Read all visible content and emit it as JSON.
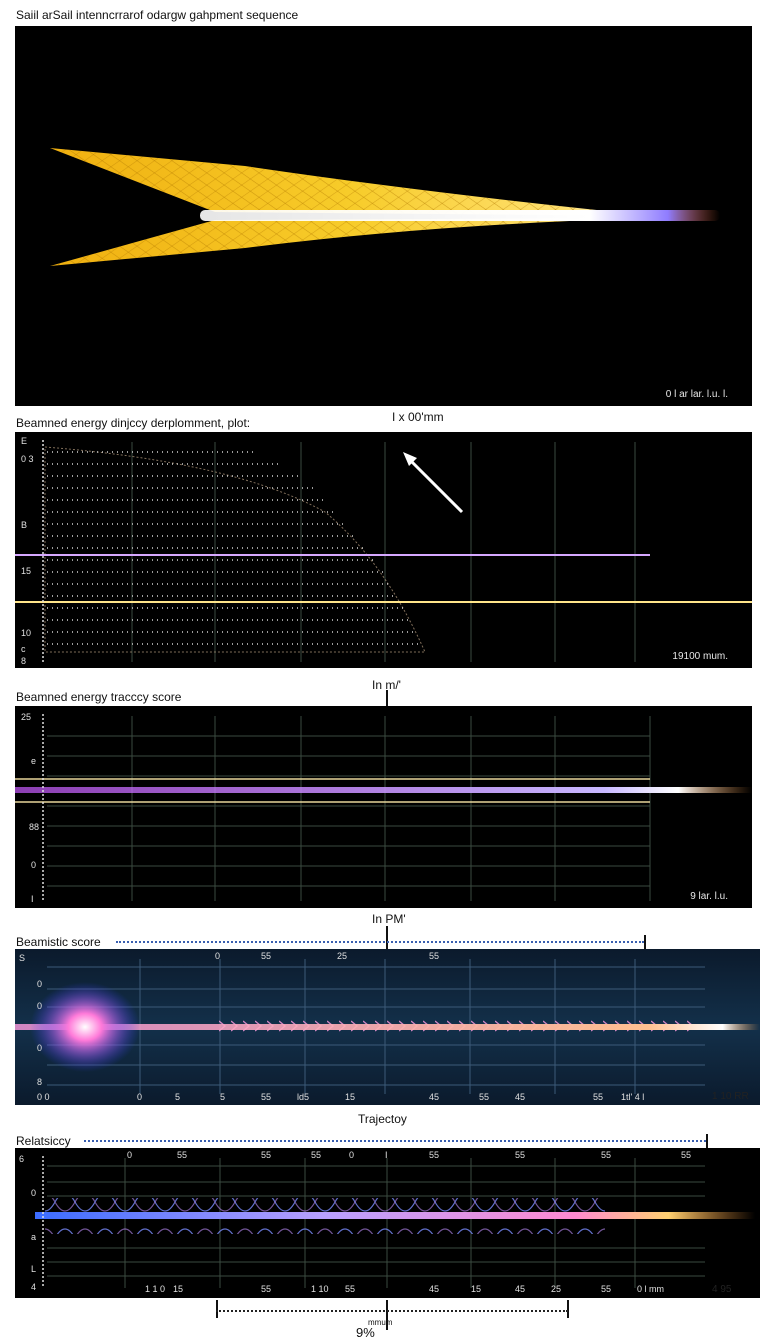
{
  "panel1": {
    "title": "Saiil arSail intenncrrarof odargw gahpment sequence",
    "scale": "0 l ar lar. l.u. l."
  },
  "panel2": {
    "title": "Beamned energy dinjccy derplomment, plot:",
    "header_marker": "I x 00'mm",
    "scale": "19100 mum.",
    "y_ticks": [
      "E",
      "0 3",
      "B",
      "15",
      "10",
      "c",
      "8"
    ]
  },
  "panel3": {
    "title": "Beamned energy tracccy score",
    "header_marker": "In m/'",
    "scale": "9 lar. l.u.",
    "y_ticks": [
      "25",
      "e",
      "88",
      "0",
      "I"
    ]
  },
  "panel4": {
    "title": "Beamistic score",
    "header_marker": "In PM'",
    "scale": "1 10 RR",
    "top_ticks": [
      "0",
      "55",
      "25",
      "55"
    ],
    "y_ticks": [
      "S",
      "0",
      "0",
      "0",
      "8"
    ],
    "bottom_ticks": [
      "0 0",
      "0",
      "5",
      "5",
      "55",
      "ld5",
      "15",
      "45",
      "55",
      "45",
      "55",
      "1tl' 4 l"
    ]
  },
  "panel5": {
    "title": "Relatsiccy",
    "header_marker": "Trajectoy",
    "scale": "4 95",
    "top_ticks": [
      "0",
      "55",
      "55",
      "55",
      "0",
      "I",
      "55",
      "55",
      "55",
      "55"
    ],
    "y_ticks": [
      "6",
      "0",
      "a",
      "L",
      "4"
    ],
    "bottom_ticks": [
      "1 1 0",
      "15",
      "55",
      "1 10",
      "55",
      "45",
      "15",
      "45",
      "25",
      "55",
      "0 l mm"
    ],
    "footer_small": "mmum",
    "footer_value": "9%"
  },
  "colors": {
    "sail": "#f5c518",
    "beam": "#ffffff",
    "glow_blue": "#6f6cff",
    "glow_orange": "#ff9a3c",
    "grid": "#3a4a40"
  },
  "chart_data": [
    {
      "type": "area",
      "title": "Saiil arSail intenncrrarof odargw gahpment sequence"
    },
    {
      "type": "scatter",
      "title": "Beamned energy dinjccy derplomment, plot:"
    },
    {
      "type": "line",
      "title": "Beamned energy tracccy score"
    },
    {
      "type": "line",
      "title": "Beamistic score"
    },
    {
      "type": "line",
      "title": "Relatsiccy",
      "xlabel": "Trajectoy"
    }
  ]
}
